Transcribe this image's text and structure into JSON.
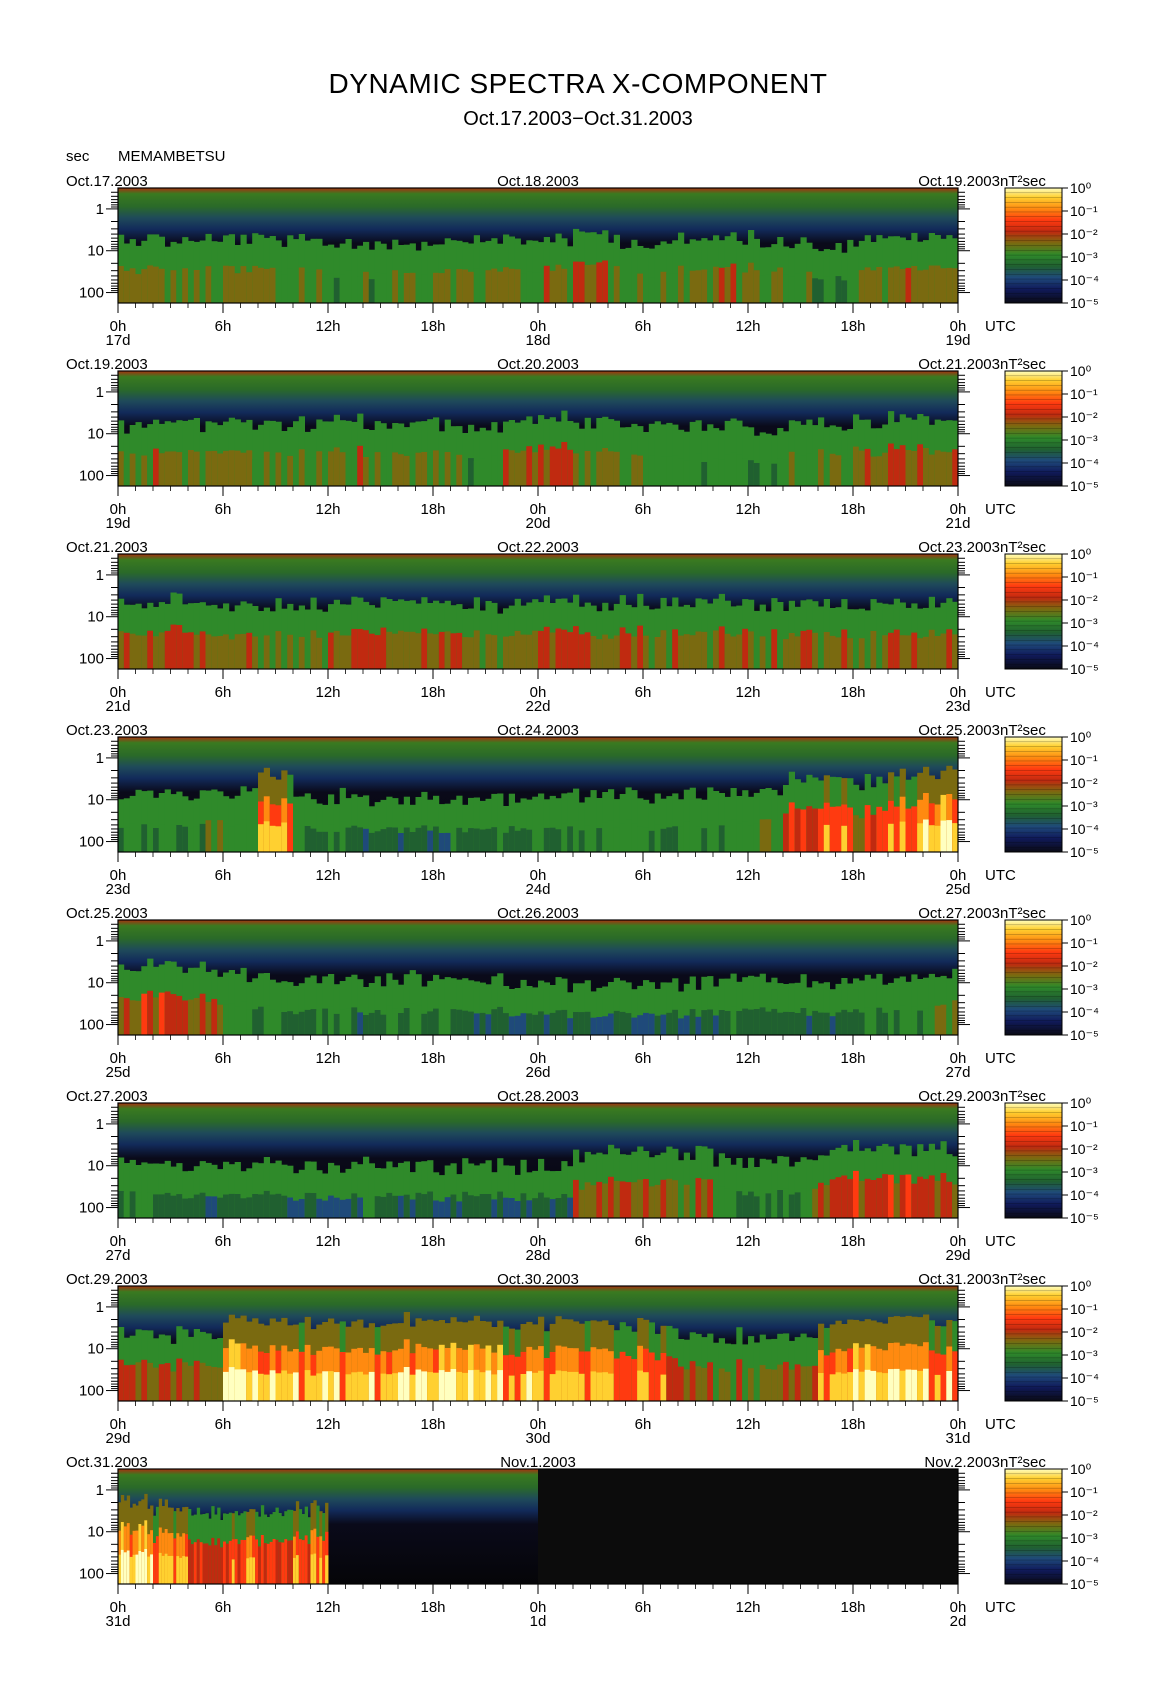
{
  "title": "DYNAMIC SPECTRA X-COMPONENT",
  "subtitle": "Oct.17.2003−Oct.31.2003",
  "y_unit": "sec",
  "station": "MEMAMBETSU",
  "colorbar_unit": "nT²sec",
  "colors": {
    "colormap": [
      "#0a0a14",
      "#101a5a",
      "#1f4a7a",
      "#206030",
      "#2f8a2a",
      "#7a6a10",
      "#c02a10",
      "#ff3a10",
      "#ff8a10",
      "#ffd030",
      "#ffffc0"
    ]
  },
  "chart_data": [
    {
      "type": "heatmap",
      "dates": [
        "Oct.17.2003",
        "Oct.18.2003",
        "Oct.19.2003"
      ],
      "x_ticks": [
        "0h",
        "6h",
        "12h",
        "18h",
        "0h",
        "6h",
        "12h",
        "18h",
        "0h"
      ],
      "day_labels": [
        "17d",
        "18d",
        "19d"
      ],
      "x_unit": "UTC",
      "y_ticks": [
        "1",
        "10",
        "100"
      ],
      "colorbar_ticks": [
        "10⁰",
        "10⁻¹",
        "10⁻²",
        "10⁻³",
        "10⁻⁴",
        "10⁻⁵"
      ],
      "activity": [
        0.45,
        0.4,
        0.4,
        0.42,
        0.4,
        0.38,
        0.35,
        0.33,
        0.38,
        0.45,
        0.42,
        0.4,
        0.45,
        0.55,
        0.4,
        0.35,
        0.4,
        0.45,
        0.42,
        0.35,
        0.3,
        0.4,
        0.5,
        0.45
      ],
      "data_coverage": 1.0
    },
    {
      "type": "heatmap",
      "dates": [
        "Oct.19.2003",
        "Oct.20.2003",
        "Oct.21.2003"
      ],
      "x_ticks": [
        "0h",
        "6h",
        "12h",
        "18h",
        "0h",
        "6h",
        "12h",
        "18h",
        "0h"
      ],
      "day_labels": [
        "19d",
        "20d",
        "21d"
      ],
      "x_unit": "UTC",
      "y_ticks": [
        "1",
        "10",
        "100"
      ],
      "colorbar_ticks": [
        "10⁰",
        "10⁻¹",
        "10⁻²",
        "10⁻³",
        "10⁻⁴",
        "10⁻⁵"
      ],
      "activity": [
        0.4,
        0.45,
        0.42,
        0.4,
        0.35,
        0.4,
        0.45,
        0.4,
        0.45,
        0.35,
        0.3,
        0.5,
        0.5,
        0.45,
        0.35,
        0.3,
        0.3,
        0.32,
        0.3,
        0.35,
        0.4,
        0.45,
        0.5,
        0.45
      ],
      "data_coverage": 1.0
    },
    {
      "type": "heatmap",
      "dates": [
        "Oct.21.2003",
        "Oct.22.2003",
        "Oct.23.2003"
      ],
      "x_ticks": [
        "0h",
        "6h",
        "12h",
        "18h",
        "0h",
        "6h",
        "12h",
        "18h",
        "0h"
      ],
      "day_labels": [
        "21d",
        "22d",
        "23d"
      ],
      "x_unit": "UTC",
      "y_ticks": [
        "1",
        "10",
        "100"
      ],
      "colorbar_ticks": [
        "10⁰",
        "10⁻¹",
        "10⁻²",
        "10⁻³",
        "10⁻⁴",
        "10⁻⁵"
      ],
      "activity": [
        0.5,
        0.5,
        0.45,
        0.42,
        0.42,
        0.4,
        0.45,
        0.5,
        0.45,
        0.45,
        0.4,
        0.5,
        0.55,
        0.5,
        0.5,
        0.45,
        0.45,
        0.5,
        0.45,
        0.45,
        0.45,
        0.42,
        0.45,
        0.45
      ],
      "data_coverage": 1.0
    },
    {
      "type": "heatmap",
      "dates": [
        "Oct.23.2003",
        "Oct.24.2003",
        "Oct.25.2003"
      ],
      "x_ticks": [
        "0h",
        "6h",
        "12h",
        "18h",
        "0h",
        "6h",
        "12h",
        "18h",
        "0h"
      ],
      "day_labels": [
        "23d",
        "24d",
        "25d"
      ],
      "x_unit": "UTC",
      "y_ticks": [
        "1",
        "10",
        "100"
      ],
      "colorbar_ticks": [
        "10⁰",
        "10⁻¹",
        "10⁻²",
        "10⁻³",
        "10⁻⁴",
        "10⁻⁵"
      ],
      "activity": [
        0.35,
        0.3,
        0.35,
        0.3,
        0.7,
        0.25,
        0.25,
        0.22,
        0.2,
        0.2,
        0.2,
        0.22,
        0.25,
        0.3,
        0.35,
        0.3,
        0.3,
        0.3,
        0.35,
        0.6,
        0.65,
        0.55,
        0.7,
        0.8
      ],
      "data_coverage": 1.0
    },
    {
      "type": "heatmap",
      "dates": [
        "Oct.25.2003",
        "Oct.26.2003",
        "Oct.27.2003"
      ],
      "x_ticks": [
        "0h",
        "6h",
        "12h",
        "18h",
        "0h",
        "6h",
        "12h",
        "18h",
        "0h"
      ],
      "day_labels": [
        "25d",
        "26d",
        "27d"
      ],
      "x_unit": "UTC",
      "y_ticks": [
        "1",
        "10",
        "100"
      ],
      "colorbar_ticks": [
        "10⁰",
        "10⁻¹",
        "10⁻²",
        "10⁻³",
        "10⁻⁴",
        "10⁻⁵"
      ],
      "activity": [
        0.55,
        0.55,
        0.5,
        0.3,
        0.25,
        0.22,
        0.22,
        0.25,
        0.3,
        0.28,
        0.2,
        0.18,
        0.15,
        0.15,
        0.15,
        0.15,
        0.15,
        0.2,
        0.2,
        0.2,
        0.18,
        0.2,
        0.3,
        0.35
      ],
      "data_coverage": 1.0
    },
    {
      "type": "heatmap",
      "dates": [
        "Oct.27.2003",
        "Oct.28.2003",
        "Oct.29.2003"
      ],
      "x_ticks": [
        "0h",
        "6h",
        "12h",
        "18h",
        "0h",
        "6h",
        "12h",
        "18h",
        "0h"
      ],
      "day_labels": [
        "27d",
        "28d",
        "29d"
      ],
      "x_unit": "UTC",
      "y_ticks": [
        "1",
        "10",
        "100"
      ],
      "colorbar_ticks": [
        "10⁰",
        "10⁻¹",
        "10⁻²",
        "10⁻³",
        "10⁻⁴",
        "10⁻⁵"
      ],
      "activity": [
        0.25,
        0.2,
        0.2,
        0.2,
        0.15,
        0.15,
        0.15,
        0.25,
        0.2,
        0.15,
        0.15,
        0.15,
        0.15,
        0.45,
        0.5,
        0.5,
        0.45,
        0.3,
        0.25,
        0.35,
        0.5,
        0.55,
        0.55,
        0.55
      ],
      "data_coverage": 1.0
    },
    {
      "type": "heatmap",
      "dates": [
        "Oct.29.2003",
        "Oct.30.2003",
        "Oct.31.2003"
      ],
      "x_ticks": [
        "0h",
        "6h",
        "12h",
        "18h",
        "0h",
        "6h",
        "12h",
        "18h",
        "0h"
      ],
      "day_labels": [
        "29d",
        "30d",
        "31d"
      ],
      "x_unit": "UTC",
      "y_ticks": [
        "1",
        "10",
        "100"
      ],
      "colorbar_ticks": [
        "10⁰",
        "10⁻¹",
        "10⁻²",
        "10⁻³",
        "10⁻⁴",
        "10⁻⁵"
      ],
      "activity": [
        0.5,
        0.5,
        0.5,
        0.85,
        0.8,
        0.75,
        0.75,
        0.75,
        0.8,
        0.8,
        0.8,
        0.75,
        0.75,
        0.75,
        0.7,
        0.65,
        0.5,
        0.45,
        0.45,
        0.5,
        0.7,
        0.85,
        0.8,
        0.75
      ],
      "data_coverage": 1.0
    },
    {
      "type": "heatmap",
      "dates": [
        "Oct.31.2003",
        "Nov.1.2003",
        "Nov.2.2003"
      ],
      "x_ticks": [
        "0h",
        "6h",
        "12h",
        "18h",
        "0h",
        "6h",
        "12h",
        "18h",
        "0h"
      ],
      "day_labels": [
        "31d",
        "1d",
        "2d"
      ],
      "x_unit": "UTC",
      "y_ticks": [
        "1",
        "10",
        "100"
      ],
      "colorbar_ticks": [
        "10⁰",
        "10⁻¹",
        "10⁻²",
        "10⁻³",
        "10⁻⁴",
        "10⁻⁵"
      ],
      "activity": [
        0.8,
        0.85,
        0.7,
        0.75,
        0.65,
        0.6,
        0.65,
        0.7,
        0.6,
        0.65,
        0.7,
        0.72,
        0.0,
        0.0,
        0.0,
        0.0,
        0.0,
        0.0,
        0.0,
        0.0,
        0.0,
        0.0,
        0.0,
        0.0
      ],
      "data_coverage": 0.5
    }
  ]
}
